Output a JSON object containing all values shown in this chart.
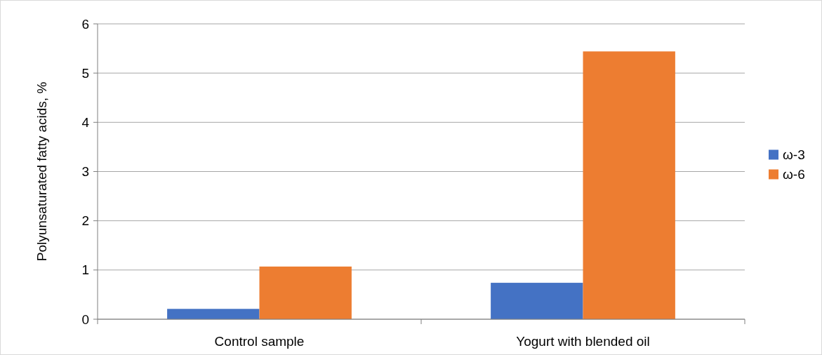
{
  "chart_data": {
    "type": "bar",
    "ylabel": "Polyunsaturated fatty acids, %",
    "categories": [
      "Control sample",
      "Yogurt with blended oil"
    ],
    "series": [
      {
        "name": "ω-3",
        "color": "#4472c4",
        "values": [
          0.21,
          0.74
        ]
      },
      {
        "name": "ω-6",
        "color": "#ed7d31",
        "values": [
          1.07,
          5.44
        ]
      }
    ],
    "ylim": [
      0,
      6
    ],
    "yticks": [
      0,
      1,
      2,
      3,
      4,
      5,
      6
    ],
    "grid": "y",
    "legend": "right"
  }
}
